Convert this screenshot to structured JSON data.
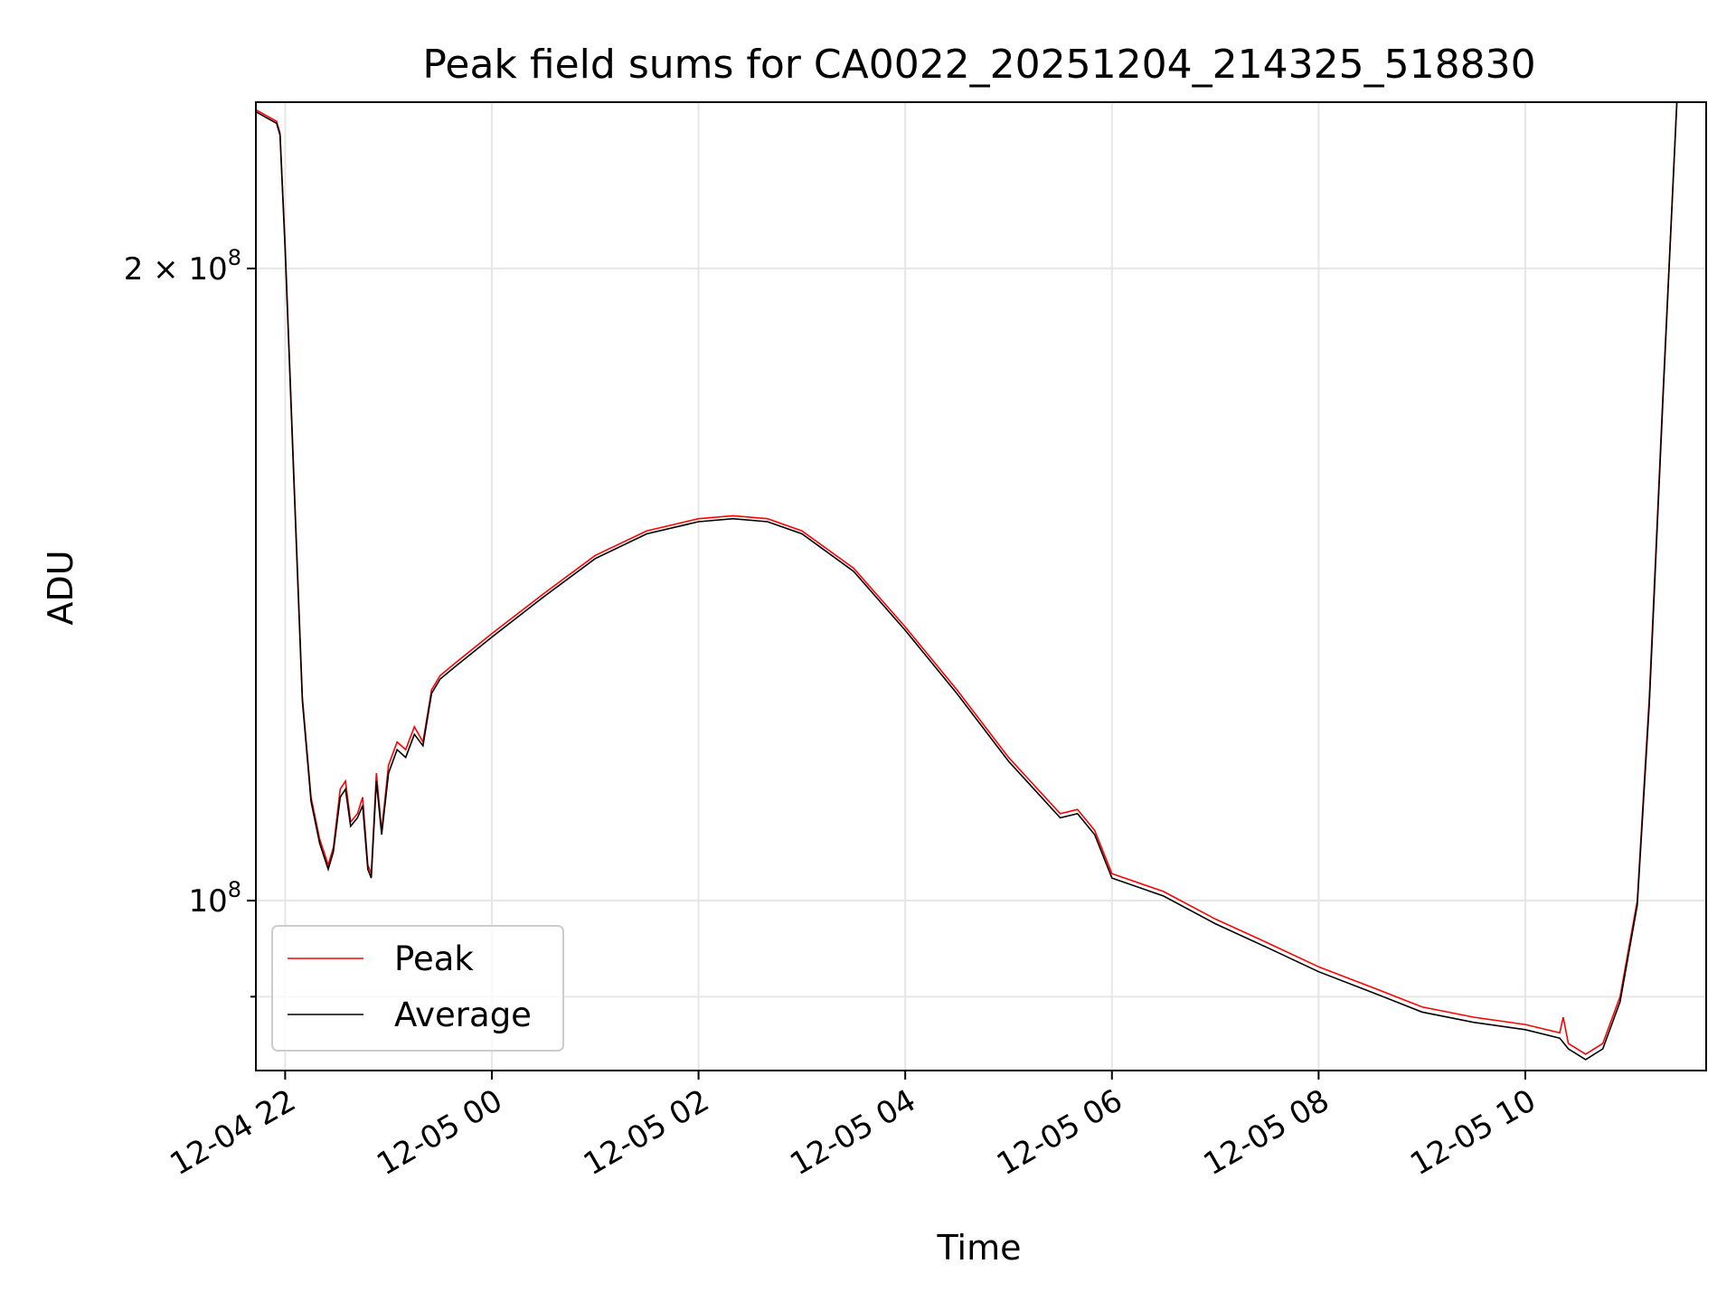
{
  "chart_data": {
    "type": "line",
    "title": "Peak field sums for CA0022_20251204_214325_518830",
    "xlabel": "Time",
    "ylabel": "ADU",
    "y_scale": "log",
    "ylim": [
      83000000,
      240000000
    ],
    "xlim": [
      "2025-12-04 21:43",
      "2025-12-05 11:45"
    ],
    "grid": true,
    "legend": {
      "position": "lower-left"
    },
    "x_ticks": [
      {
        "t": "2025-12-04 22:00",
        "label": "12-04 22"
      },
      {
        "t": "2025-12-05 00:00",
        "label": "12-05 00"
      },
      {
        "t": "2025-12-05 02:00",
        "label": "12-05 02"
      },
      {
        "t": "2025-12-05 04:00",
        "label": "12-05 04"
      },
      {
        "t": "2025-12-05 06:00",
        "label": "12-05 06"
      },
      {
        "t": "2025-12-05 08:00",
        "label": "12-05 08"
      },
      {
        "t": "2025-12-05 10:00",
        "label": "12-05 10"
      }
    ],
    "y_major_ticks": [
      {
        "value": 100000000,
        "base": "10",
        "exp": "8",
        "mult": ""
      },
      {
        "value": 200000000,
        "base": "10",
        "exp": "8",
        "mult": "2 × "
      }
    ],
    "y_minor_ticks": [
      90000000
    ],
    "series": [
      {
        "name": "Peak",
        "color": "#ff0000",
        "points": [
          [
            "2025-12-04 21:43",
            238000000
          ],
          [
            "2025-12-04 21:55",
            235000000
          ],
          [
            "2025-12-04 21:57",
            232000000
          ],
          [
            "2025-12-04 22:00",
            205000000
          ],
          [
            "2025-12-04 22:05",
            160000000
          ],
          [
            "2025-12-04 22:10",
            125000000
          ],
          [
            "2025-12-04 22:15",
            112000000
          ],
          [
            "2025-12-04 22:20",
            107000000
          ],
          [
            "2025-12-04 22:25",
            104000000
          ],
          [
            "2025-12-04 22:28",
            106000000
          ],
          [
            "2025-12-04 22:32",
            113000000
          ],
          [
            "2025-12-04 22:35",
            114000000
          ],
          [
            "2025-12-04 22:38",
            109000000
          ],
          [
            "2025-12-04 22:42",
            110000000
          ],
          [
            "2025-12-04 22:45",
            112000000
          ],
          [
            "2025-12-04 22:48",
            104000000
          ],
          [
            "2025-12-04 22:50",
            103000000
          ],
          [
            "2025-12-04 22:53",
            115000000
          ],
          [
            "2025-12-04 22:56",
            108000000
          ],
          [
            "2025-12-04 23:00",
            116000000
          ],
          [
            "2025-12-04 23:05",
            119000000
          ],
          [
            "2025-12-04 23:10",
            118000000
          ],
          [
            "2025-12-04 23:15",
            121000000
          ],
          [
            "2025-12-04 23:20",
            119000000
          ],
          [
            "2025-12-04 23:25",
            126000000
          ],
          [
            "2025-12-04 23:30",
            128000000
          ],
          [
            "2025-12-04 23:40",
            130000000
          ],
          [
            "2025-12-05 00:00",
            134000000
          ],
          [
            "2025-12-05 00:30",
            140000000
          ],
          [
            "2025-12-05 01:00",
            146000000
          ],
          [
            "2025-12-05 01:30",
            150000000
          ],
          [
            "2025-12-05 02:00",
            152000000
          ],
          [
            "2025-12-05 02:20",
            152500000
          ],
          [
            "2025-12-05 02:40",
            152000000
          ],
          [
            "2025-12-05 03:00",
            150000000
          ],
          [
            "2025-12-05 03:30",
            144000000
          ],
          [
            "2025-12-05 04:00",
            135000000
          ],
          [
            "2025-12-05 04:30",
            126000000
          ],
          [
            "2025-12-05 05:00",
            117000000
          ],
          [
            "2025-12-05 05:30",
            110000000
          ],
          [
            "2025-12-05 05:40",
            110500000
          ],
          [
            "2025-12-05 05:50",
            108000000
          ],
          [
            "2025-12-05 06:00",
            103000000
          ],
          [
            "2025-12-05 06:30",
            101000000
          ],
          [
            "2025-12-05 07:00",
            98000000
          ],
          [
            "2025-12-05 07:30",
            95500000
          ],
          [
            "2025-12-05 08:00",
            93000000
          ],
          [
            "2025-12-05 08:30",
            91000000
          ],
          [
            "2025-12-05 09:00",
            89000000
          ],
          [
            "2025-12-05 09:30",
            88000000
          ],
          [
            "2025-12-05 10:00",
            87300000
          ],
          [
            "2025-12-05 10:20",
            86500000
          ],
          [
            "2025-12-05 10:22",
            88000000
          ],
          [
            "2025-12-05 10:25",
            85500000
          ],
          [
            "2025-12-05 10:35",
            84500000
          ],
          [
            "2025-12-05 10:45",
            85500000
          ],
          [
            "2025-12-05 10:55",
            90000000
          ],
          [
            "2025-12-05 11:05",
            100000000
          ],
          [
            "2025-12-05 11:12",
            125000000
          ],
          [
            "2025-12-05 11:20",
            175000000
          ],
          [
            "2025-12-05 11:28",
            240000000
          ]
        ]
      },
      {
        "name": "Average",
        "color": "#000000",
        "points": [
          [
            "2025-12-04 21:43",
            237500000
          ],
          [
            "2025-12-04 21:55",
            234500000
          ],
          [
            "2025-12-04 21:57",
            231500000
          ],
          [
            "2025-12-04 22:00",
            204000000
          ],
          [
            "2025-12-04 22:05",
            159000000
          ],
          [
            "2025-12-04 22:10",
            124500000
          ],
          [
            "2025-12-04 22:15",
            111500000
          ],
          [
            "2025-12-04 22:20",
            106500000
          ],
          [
            "2025-12-04 22:25",
            103500000
          ],
          [
            "2025-12-04 22:28",
            105500000
          ],
          [
            "2025-12-04 22:32",
            112000000
          ],
          [
            "2025-12-04 22:35",
            113000000
          ],
          [
            "2025-12-04 22:38",
            108500000
          ],
          [
            "2025-12-04 22:42",
            109500000
          ],
          [
            "2025-12-04 22:45",
            111000000
          ],
          [
            "2025-12-04 22:48",
            103500000
          ],
          [
            "2025-12-04 22:50",
            102500000
          ],
          [
            "2025-12-04 22:53",
            114000000
          ],
          [
            "2025-12-04 22:56",
            107500000
          ],
          [
            "2025-12-04 23:00",
            115000000
          ],
          [
            "2025-12-04 23:05",
            118000000
          ],
          [
            "2025-12-04 23:10",
            117000000
          ],
          [
            "2025-12-04 23:15",
            120000000
          ],
          [
            "2025-12-04 23:20",
            118500000
          ],
          [
            "2025-12-04 23:25",
            125500000
          ],
          [
            "2025-12-04 23:30",
            127500000
          ],
          [
            "2025-12-04 23:40",
            129500000
          ],
          [
            "2025-12-05 00:00",
            133500000
          ],
          [
            "2025-12-05 00:30",
            139500000
          ],
          [
            "2025-12-05 01:00",
            145500000
          ],
          [
            "2025-12-05 01:30",
            149500000
          ],
          [
            "2025-12-05 02:00",
            151500000
          ],
          [
            "2025-12-05 02:20",
            152000000
          ],
          [
            "2025-12-05 02:40",
            151500000
          ],
          [
            "2025-12-05 03:00",
            149500000
          ],
          [
            "2025-12-05 03:30",
            143500000
          ],
          [
            "2025-12-05 04:00",
            134500000
          ],
          [
            "2025-12-05 04:30",
            125500000
          ],
          [
            "2025-12-05 05:00",
            116500000
          ],
          [
            "2025-12-05 05:30",
            109500000
          ],
          [
            "2025-12-05 05:40",
            110000000
          ],
          [
            "2025-12-05 05:50",
            107500000
          ],
          [
            "2025-12-05 06:00",
            102500000
          ],
          [
            "2025-12-05 06:30",
            100500000
          ],
          [
            "2025-12-05 07:00",
            97500000
          ],
          [
            "2025-12-05 07:30",
            95000000
          ],
          [
            "2025-12-05 08:00",
            92500000
          ],
          [
            "2025-12-05 08:30",
            90500000
          ],
          [
            "2025-12-05 09:00",
            88500000
          ],
          [
            "2025-12-05 09:30",
            87500000
          ],
          [
            "2025-12-05 10:00",
            86800000
          ],
          [
            "2025-12-05 10:20",
            86000000
          ],
          [
            "2025-12-05 10:25",
            85000000
          ],
          [
            "2025-12-05 10:35",
            84000000
          ],
          [
            "2025-12-05 10:45",
            85000000
          ],
          [
            "2025-12-05 10:55",
            89500000
          ],
          [
            "2025-12-05 11:05",
            99500000
          ],
          [
            "2025-12-05 11:12",
            124000000
          ],
          [
            "2025-12-05 11:20",
            174000000
          ],
          [
            "2025-12-05 11:28",
            240000000
          ]
        ]
      }
    ]
  }
}
